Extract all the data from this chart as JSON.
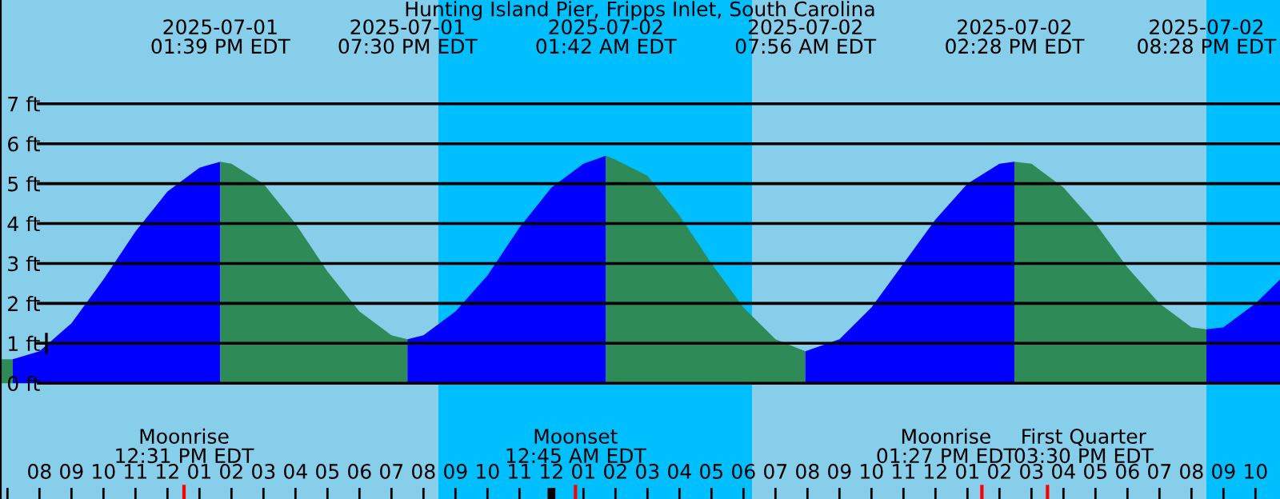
{
  "chart_data": {
    "type": "area",
    "title": "Hunting Island Pier, Fripps Inlet, South Carolina",
    "xlim": [
      "2025-07-01T06:46",
      "2025-07-02T22:46"
    ],
    "ylim": [
      -2.9,
      9.6
    ],
    "yticks": [
      {
        "value": 0,
        "label": "0 ft"
      },
      {
        "value": 1,
        "label": "1 ft"
      },
      {
        "value": 2,
        "label": "2 ft"
      },
      {
        "value": 3,
        "label": "3 ft"
      },
      {
        "value": 4,
        "label": "4 ft"
      },
      {
        "value": 5,
        "label": "5 ft"
      },
      {
        "value": 6,
        "label": "6 ft"
      },
      {
        "value": 7,
        "label": "7 ft"
      }
    ],
    "xticks": [
      {
        "value": "2025-07-01T07:00",
        "label": null
      },
      {
        "value": "2025-07-01T08:00",
        "label": "08"
      },
      {
        "value": "2025-07-01T09:00",
        "label": "09"
      },
      {
        "value": "2025-07-01T10:00",
        "label": "10"
      },
      {
        "value": "2025-07-01T11:00",
        "label": "11"
      },
      {
        "value": "2025-07-01T12:00",
        "label": "12"
      },
      {
        "value": "2025-07-01T13:00",
        "label": "01"
      },
      {
        "value": "2025-07-01T14:00",
        "label": "02"
      },
      {
        "value": "2025-07-01T15:00",
        "label": "03"
      },
      {
        "value": "2025-07-01T16:00",
        "label": "04"
      },
      {
        "value": "2025-07-01T17:00",
        "label": "05"
      },
      {
        "value": "2025-07-01T18:00",
        "label": "06"
      },
      {
        "value": "2025-07-01T19:00",
        "label": "07"
      },
      {
        "value": "2025-07-01T20:00",
        "label": "08"
      },
      {
        "value": "2025-07-01T21:00",
        "label": "09"
      },
      {
        "value": "2025-07-01T22:00",
        "label": "10"
      },
      {
        "value": "2025-07-01T23:00",
        "label": "11"
      },
      {
        "value": "2025-07-02T00:00",
        "label": "12"
      },
      {
        "value": "2025-07-02T01:00",
        "label": "01"
      },
      {
        "value": "2025-07-02T02:00",
        "label": "02"
      },
      {
        "value": "2025-07-02T03:00",
        "label": "03"
      },
      {
        "value": "2025-07-02T04:00",
        "label": "04"
      },
      {
        "value": "2025-07-02T05:00",
        "label": "05"
      },
      {
        "value": "2025-07-02T06:00",
        "label": "06"
      },
      {
        "value": "2025-07-02T07:00",
        "label": "07"
      },
      {
        "value": "2025-07-02T08:00",
        "label": "08"
      },
      {
        "value": "2025-07-02T09:00",
        "label": "09"
      },
      {
        "value": "2025-07-02T10:00",
        "label": "10"
      },
      {
        "value": "2025-07-02T11:00",
        "label": "11"
      },
      {
        "value": "2025-07-02T12:00",
        "label": "12"
      },
      {
        "value": "2025-07-02T13:00",
        "label": "01"
      },
      {
        "value": "2025-07-02T14:00",
        "label": "02"
      },
      {
        "value": "2025-07-02T15:00",
        "label": "03"
      },
      {
        "value": "2025-07-02T16:00",
        "label": "04"
      },
      {
        "value": "2025-07-02T17:00",
        "label": "05"
      },
      {
        "value": "2025-07-02T18:00",
        "label": "06"
      },
      {
        "value": "2025-07-02T19:00",
        "label": "07"
      },
      {
        "value": "2025-07-02T20:00",
        "label": "08"
      },
      {
        "value": "2025-07-02T21:00",
        "label": "09"
      },
      {
        "value": "2025-07-02T22:00",
        "label": "10"
      }
    ],
    "grid": "y",
    "legend": false,
    "series": [
      {
        "color": "#2e8b57",
        "x": [
          "2025-07-01T06:46",
          "2025-07-01T07:10"
        ],
        "values": [
          0.6,
          0.6
        ]
      },
      {
        "color": "#0000ff",
        "x": [
          "2025-07-01T07:10",
          "2025-07-01T08:00",
          "2025-07-01T09:00",
          "2025-07-01T10:00",
          "2025-07-01T11:00",
          "2025-07-01T12:00",
          "2025-07-01T13:00",
          "2025-07-01T13:39"
        ],
        "values": [
          0.6,
          0.8,
          1.5,
          2.6,
          3.8,
          4.8,
          5.4,
          5.55
        ]
      },
      {
        "color": "#2e8b57",
        "x": [
          "2025-07-01T13:39",
          "2025-07-01T14:00",
          "2025-07-01T15:00",
          "2025-07-01T16:00",
          "2025-07-01T17:00",
          "2025-07-01T18:00",
          "2025-07-01T19:00",
          "2025-07-01T19:30"
        ],
        "values": [
          5.55,
          5.5,
          5.0,
          4.0,
          2.8,
          1.8,
          1.2,
          1.1
        ]
      },
      {
        "color": "#0000ff",
        "x": [
          "2025-07-01T19:30",
          "2025-07-01T20:00",
          "2025-07-01T21:00",
          "2025-07-01T22:00",
          "2025-07-01T23:00",
          "2025-07-02T00:00",
          "2025-07-02T01:00",
          "2025-07-02T01:42"
        ],
        "values": [
          1.1,
          1.2,
          1.8,
          2.7,
          3.9,
          4.9,
          5.5,
          5.7
        ]
      },
      {
        "color": "#2e8b57",
        "x": [
          "2025-07-02T01:42",
          "2025-07-02T02:00",
          "2025-07-02T03:00",
          "2025-07-02T04:00",
          "2025-07-02T05:00",
          "2025-07-02T06:00",
          "2025-07-02T07:00",
          "2025-07-02T07:56"
        ],
        "values": [
          5.7,
          5.6,
          5.2,
          4.2,
          3.0,
          1.9,
          1.1,
          0.8
        ]
      },
      {
        "color": "#0000ff",
        "x": [
          "2025-07-02T07:56",
          "2025-07-02T09:00",
          "2025-07-02T10:00",
          "2025-07-02T11:00",
          "2025-07-02T12:00",
          "2025-07-02T13:00",
          "2025-07-02T14:00",
          "2025-07-02T14:28"
        ],
        "values": [
          0.8,
          1.1,
          1.9,
          3.0,
          4.1,
          5.0,
          5.5,
          5.55
        ]
      },
      {
        "color": "#2e8b57",
        "x": [
          "2025-07-02T14:28",
          "2025-07-02T15:00",
          "2025-07-02T16:00",
          "2025-07-02T17:00",
          "2025-07-02T18:00",
          "2025-07-02T19:00",
          "2025-07-02T20:00",
          "2025-07-02T20:28"
        ],
        "values": [
          5.55,
          5.5,
          4.9,
          4.0,
          2.9,
          2.0,
          1.4,
          1.35
        ]
      },
      {
        "color": "#0000ff",
        "x": [
          "2025-07-02T20:28",
          "2025-07-02T21:00",
          "2025-07-02T22:00",
          "2025-07-02T22:46"
        ],
        "values": [
          1.35,
          1.4,
          2.0,
          2.6
        ]
      },
      {
        "type": "scatter",
        "marker": "cross",
        "color": "#000000",
        "x": [
          "2025-07-01T08:13"
        ],
        "values": [
          1
        ]
      }
    ],
    "bands": [
      {
        "axis": "x",
        "from": "2025-07-01T06:46",
        "to": "2025-07-01T20:28",
        "color": "#87ceeb"
      },
      {
        "axis": "x",
        "from": "2025-07-01T20:28",
        "to": "2025-07-02T06:16",
        "color": "#00bfff"
      },
      {
        "axis": "x",
        "from": "2025-07-02T06:16",
        "to": "2025-07-02T20:28",
        "color": "#87ceeb"
      },
      {
        "axis": "x",
        "from": "2025-07-02T20:28",
        "to": "2025-07-02T22:46",
        "color": "#00bfff"
      }
    ],
    "ref_lines": [
      {
        "axis": "x",
        "value": "2025-07-01T12:31",
        "label": "Moonrise\n12:31 PM EDT",
        "color": "#ff0000"
      },
      {
        "axis": "x",
        "value": "2025-07-02T00:45",
        "label": "Moonset\n12:45 AM EDT",
        "color": "#ff0000"
      },
      {
        "axis": "x",
        "value": "2025-07-02T13:27",
        "label": "Moonrise\n01:27 PM EDT",
        "color": "#ff0000"
      },
      {
        "axis": "x",
        "value": "2025-07-02T15:30",
        "label": "First Quarter\n03:30 PM EDT",
        "color": "#ff0000"
      }
    ],
    "annotations": [
      "2025-07-01\n01:39 PM EDT",
      "2025-07-01\n07:30 PM EDT",
      "2025-07-02\n01:42 AM EDT",
      "2025-07-02\n07:56 AM EDT",
      "2025-07-02\n02:28 PM EDT",
      "2025-07-02\n08:28 PM EDT"
    ]
  }
}
